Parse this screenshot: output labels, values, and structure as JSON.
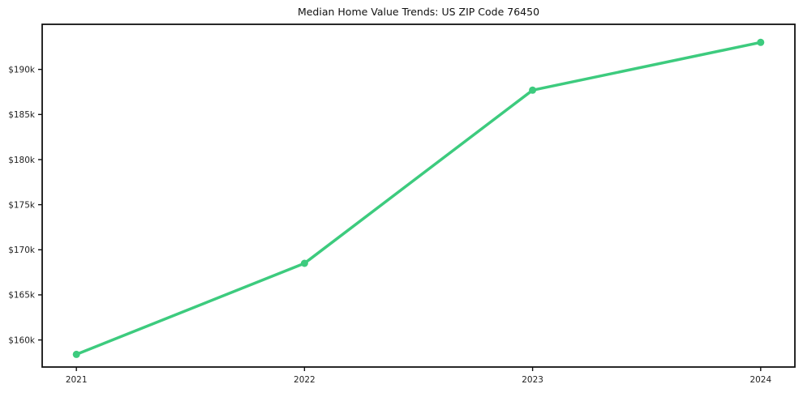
{
  "chart_data": {
    "type": "line",
    "title": "Median Home Value Trends: US ZIP Code 76450",
    "x": [
      2021,
      2022,
      2023,
      2024
    ],
    "x_tick_labels": [
      "2021",
      "2022",
      "2023",
      "2024"
    ],
    "series": [
      {
        "name": "Median Home Value",
        "values": [
          158400,
          168500,
          187700,
          193000
        ]
      }
    ],
    "y_ticks": [
      160000,
      165000,
      170000,
      175000,
      180000,
      185000,
      190000
    ],
    "y_tick_labels": [
      "$160k",
      "$165k",
      "$170k",
      "$175k",
      "$180k",
      "$185k",
      "$190k"
    ],
    "xlim": [
      2020.85,
      2024.15
    ],
    "ylim": [
      157000,
      195000
    ],
    "xlabel": "",
    "ylabel": "",
    "grid": false,
    "legend_position": "none",
    "line_color": "#3dcb7e",
    "marker": "circle",
    "marker_size": 4.5,
    "line_width": 3.5,
    "spine_color": "#111111",
    "tick_label_color": "#222222",
    "background_color": "#ffffff"
  }
}
